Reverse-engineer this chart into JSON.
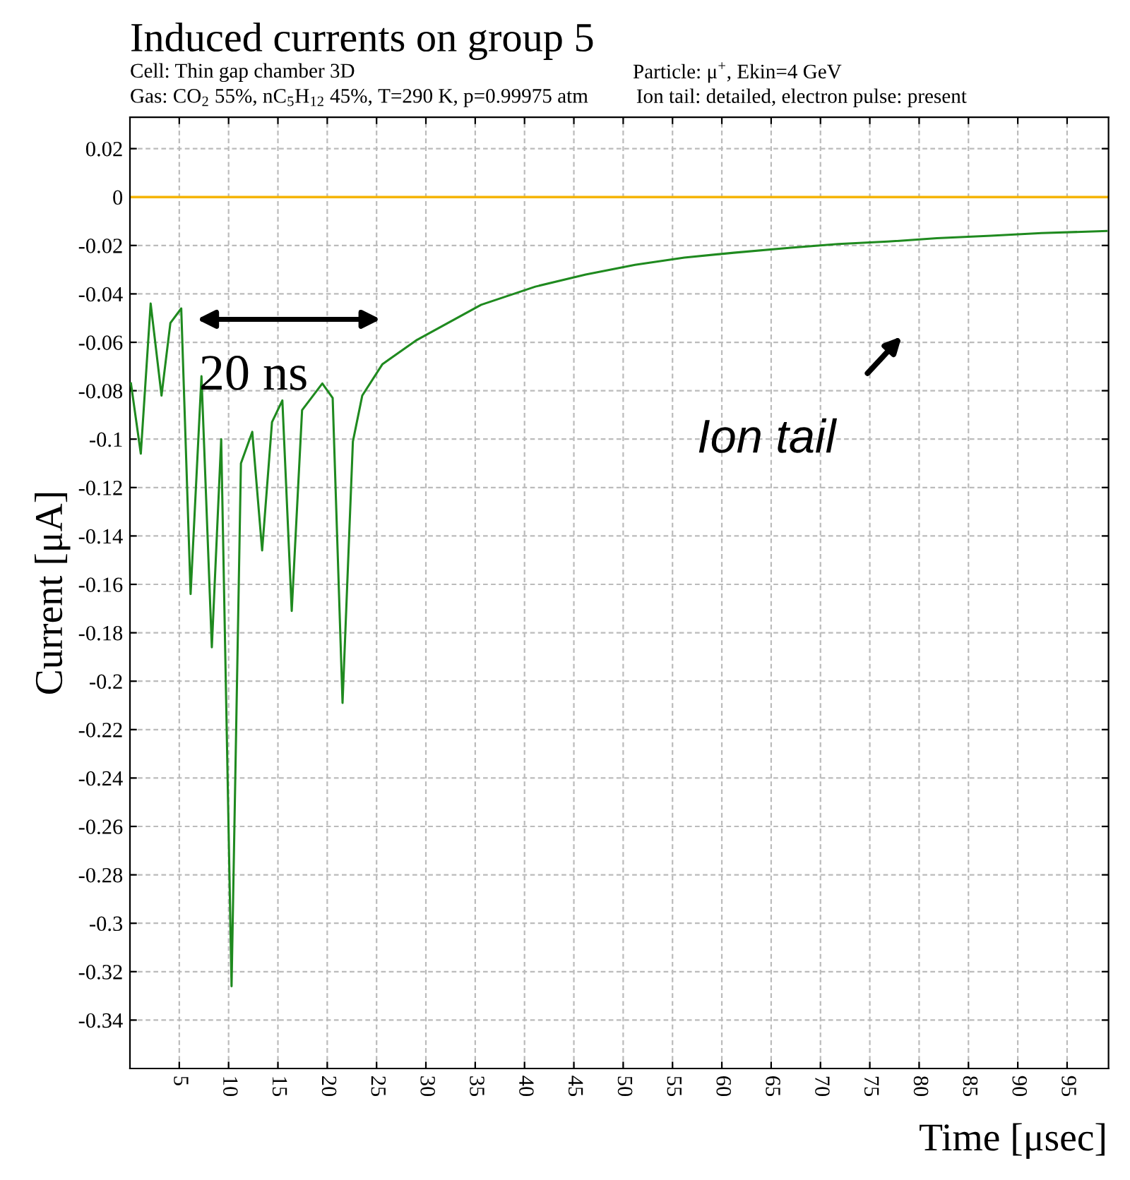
{
  "chart_data": {
    "type": "line",
    "title": "Induced currents on group 5",
    "xlabel": "Time [μsec]",
    "ylabel": "Current [μA]",
    "annotations": [
      "Cell: Thin gap chamber 3D",
      "Particle: μ$^{+}$, Ekin=4 GeV",
      "Gas: CO$_{2}$ 55%, nC$_{5}$H$_{12}$ 45%, T=290 K, p=0.99975 atm",
      "Ion tail: detailed, electron pulse: present",
      "20 ns",
      "Ion tail"
    ],
    "series": [
      {
        "color": "#1f8a1f",
        "x": [
          0.1,
          1.1,
          2.1,
          3.2,
          4.1,
          5.2,
          6.15,
          7.25,
          8.3,
          9.25,
          10.3,
          11.25,
          12.4,
          13.4,
          14.4,
          15.45,
          16.4,
          17.45,
          19.5,
          20.55,
          21.55,
          22.6,
          23.55,
          25.6,
          29.1,
          35.6,
          41.1,
          46.2,
          51.2,
          56.2,
          61.2,
          66.8,
          71.8,
          76.8,
          81.8,
          87.3,
          92.4,
          99
        ],
        "values": [
          -0.077,
          -0.106,
          -0.044,
          -0.082,
          -0.052,
          -0.046,
          -0.164,
          -0.074,
          -0.186,
          -0.1,
          -0.326,
          -0.11,
          -0.097,
          -0.146,
          -0.093,
          -0.084,
          -0.171,
          -0.088,
          -0.077,
          -0.083,
          -0.209,
          -0.101,
          -0.082,
          -0.069,
          -0.059,
          -0.0445,
          -0.037,
          -0.032,
          -0.028,
          -0.025,
          -0.023,
          -0.021,
          -0.0194,
          -0.0184,
          -0.017,
          -0.016,
          -0.0149,
          -0.014
        ]
      }
    ],
    "ref_lines": [
      {
        "axis": "y",
        "value": 0,
        "color": "#f5b400"
      }
    ],
    "xlim": [
      0,
      99.2
    ],
    "ylim": [
      -0.36,
      0.033
    ],
    "xticks": [
      5,
      10,
      15,
      20,
      25,
      30,
      35,
      40,
      45,
      50,
      55,
      60,
      65,
      70,
      75,
      80,
      85,
      90,
      95
    ],
    "yticks": [
      0.02,
      0,
      -0.02,
      -0.04,
      -0.06,
      -0.08,
      -0.1,
      -0.12,
      -0.14,
      -0.16,
      -0.18,
      -0.2,
      -0.22,
      -0.24,
      -0.26,
      -0.28,
      -0.3,
      -0.32,
      -0.34
    ],
    "grid": true,
    "legend": false,
    "marker": "none",
    "line_style": "solid"
  }
}
